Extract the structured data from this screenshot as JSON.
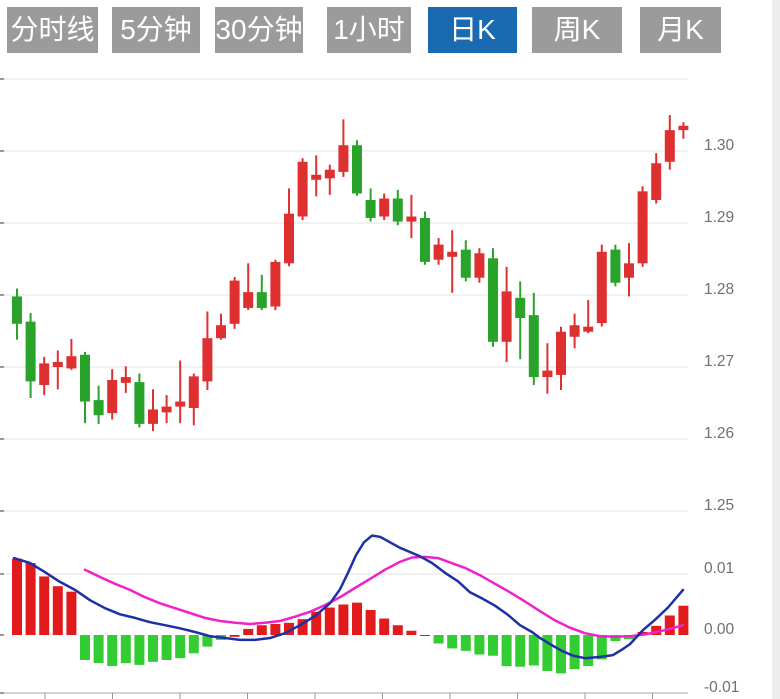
{
  "tabs": {
    "items": [
      {
        "label": "分时线",
        "active": false
      },
      {
        "label": "5分钟",
        "active": false
      },
      {
        "label": "30分钟",
        "active": false
      },
      {
        "label": "1小时",
        "active": false
      },
      {
        "label": "日K",
        "active": true
      },
      {
        "label": "周K",
        "active": false
      },
      {
        "label": "月K",
        "active": false
      }
    ]
  },
  "colors": {
    "tab_gray": "#9b9b9b",
    "tab_active_blue": "#1a6ab1",
    "candle_up_red": "#df3031",
    "candle_down_green": "#2aa32a",
    "hist_up_red": "#e11b1b",
    "hist_down_green": "#33cc33",
    "dif_line_blue": "#1e2fa8",
    "dea_line_magenta": "#ee22cc",
    "gridline": "#e3e3e3",
    "axis_line": "#aaaaaa",
    "axis_text": "#707070"
  },
  "chart_data": {
    "type": "candlestick+macd",
    "title": "",
    "price_panel": {
      "type": "candlestick",
      "y_tick_labels": [
        "1.30",
        "1.29",
        "1.28",
        "1.27",
        "1.26",
        "1.25"
      ],
      "y_tick_values": [
        1.3,
        1.29,
        1.28,
        1.27,
        1.26,
        1.25
      ],
      "grid_values": [
        1.31,
        1.3,
        1.29,
        1.28,
        1.27,
        1.26,
        1.25
      ],
      "ylim": [
        1.245,
        1.311
      ],
      "up_means": "red (close >= open)",
      "candles_ohlc": [
        [
          1.2798,
          1.2809,
          1.2738,
          1.276
        ],
        [
          1.2763,
          1.2775,
          1.2657,
          1.268
        ],
        [
          1.2675,
          1.2714,
          1.2661,
          1.2705
        ],
        [
          1.27,
          1.2723,
          1.2669,
          1.2707
        ],
        [
          1.2698,
          1.2739,
          1.2696,
          1.2715
        ],
        [
          1.2717,
          1.2721,
          1.2622,
          1.2652
        ],
        [
          1.2654,
          1.2674,
          1.2621,
          1.2633
        ],
        [
          1.2636,
          1.2697,
          1.2627,
          1.2682
        ],
        [
          1.2678,
          1.2701,
          1.2664,
          1.2686
        ],
        [
          1.2679,
          1.2691,
          1.2616,
          1.2621
        ],
        [
          1.2621,
          1.2669,
          1.2611,
          1.2641
        ],
        [
          1.2637,
          1.2661,
          1.2622,
          1.2645
        ],
        [
          1.2645,
          1.2709,
          1.2622,
          1.2652
        ],
        [
          1.2643,
          1.2691,
          1.2619,
          1.2687
        ],
        [
          1.268,
          1.2777,
          1.2668,
          1.274
        ],
        [
          1.274,
          1.2774,
          1.2738,
          1.2758
        ],
        [
          1.276,
          1.2825,
          1.2753,
          1.282
        ],
        [
          1.2782,
          1.2844,
          1.2779,
          1.2804
        ],
        [
          1.2804,
          1.2828,
          1.2779,
          1.2782
        ],
        [
          1.2784,
          1.2849,
          1.2779,
          1.2846
        ],
        [
          1.2844,
          1.2948,
          1.284,
          1.2913
        ],
        [
          1.2909,
          1.299,
          1.2904,
          1.2985
        ],
        [
          1.296,
          1.2994,
          1.2937,
          1.2967
        ],
        [
          1.2962,
          1.2981,
          1.2939,
          1.2974
        ],
        [
          1.2971,
          1.3044,
          1.2964,
          1.3008
        ],
        [
          1.3008,
          1.3015,
          1.2938,
          1.2941
        ],
        [
          1.2932,
          1.2948,
          1.2902,
          1.2907
        ],
        [
          1.2909,
          1.2941,
          1.2904,
          1.2934
        ],
        [
          1.2934,
          1.2946,
          1.2897,
          1.2902
        ],
        [
          1.2902,
          1.2939,
          1.2879,
          1.2909
        ],
        [
          1.2907,
          1.2916,
          1.2842,
          1.2846
        ],
        [
          1.2849,
          1.2879,
          1.2842,
          1.287
        ],
        [
          1.2853,
          1.289,
          1.2803,
          1.286
        ],
        [
          1.2863,
          1.2876,
          1.2819,
          1.2824
        ],
        [
          1.2824,
          1.2865,
          1.2817,
          1.2858
        ],
        [
          1.2851,
          1.2865,
          1.2728,
          1.2735
        ],
        [
          1.2735,
          1.2839,
          1.2707,
          1.2805
        ],
        [
          1.2796,
          1.2819,
          1.2711,
          1.2768
        ],
        [
          1.2772,
          1.2803,
          1.2675,
          1.2686
        ],
        [
          1.2686,
          1.2733,
          1.2663,
          1.2695
        ],
        [
          1.2689,
          1.2756,
          1.2668,
          1.2749
        ],
        [
          1.2742,
          1.2774,
          1.2726,
          1.2758
        ],
        [
          1.2749,
          1.2793,
          1.2747,
          1.2756
        ],
        [
          1.2761,
          1.287,
          1.2756,
          1.286
        ],
        [
          1.2863,
          1.287,
          1.2812,
          1.2817
        ],
        [
          1.2824,
          1.2872,
          1.2798,
          1.2844
        ],
        [
          1.2844,
          1.2951,
          1.2839,
          1.2944
        ],
        [
          1.2932,
          1.2997,
          1.2927,
          1.2983
        ],
        [
          1.2985,
          1.305,
          1.2974,
          1.3029
        ],
        [
          1.3029,
          1.304,
          1.3017,
          1.3035
        ]
      ]
    },
    "macd_panel": {
      "type": "macd",
      "y_tick_labels": [
        "0.01",
        "0.00",
        "-0.01"
      ],
      "y_tick_values": [
        0.01,
        0.0,
        -0.01
      ],
      "ylim": [
        -0.0095,
        0.017
      ],
      "histogram": [
        0.0125,
        0.0118,
        0.0096,
        0.008,
        0.0071,
        -0.0041,
        -0.0046,
        -0.0051,
        -0.0046,
        -0.0049,
        -0.0044,
        -0.0041,
        -0.0038,
        -0.003,
        -0.0019,
        -0.0008,
        -0.0003,
        0.001,
        0.0016,
        0.0018,
        0.002,
        0.0026,
        0.0038,
        0.0045,
        0.005,
        0.0053,
        0.0041,
        0.0027,
        0.0016,
        0.0007,
        0.0,
        -0.0014,
        -0.0022,
        -0.0026,
        -0.0032,
        -0.0034,
        -0.0051,
        -0.0052,
        -0.005,
        -0.0059,
        -0.0063,
        -0.0056,
        -0.0051,
        -0.004,
        -0.001,
        -0.0007,
        0.0005,
        0.0015,
        0.0032,
        0.0048
      ],
      "histogram_colors": [
        "R",
        "R",
        "R",
        "R",
        "R",
        "G",
        "G",
        "G",
        "G",
        "G",
        "G",
        "G",
        "G",
        "G",
        "G",
        "G",
        "R",
        "R",
        "R",
        "R",
        "R",
        "R",
        "R",
        "R",
        "R",
        "R",
        "R",
        "R",
        "R",
        "R",
        "R",
        "G",
        "G",
        "G",
        "G",
        "G",
        "G",
        "G",
        "G",
        "G",
        "G",
        "G",
        "G",
        "G",
        "G",
        "G",
        "R",
        "R",
        "R",
        "R"
      ],
      "dif_line": [
        [
          14,
          0.0126
        ],
        [
          30,
          0.0118
        ],
        [
          45,
          0.0103
        ],
        [
          60,
          0.0087
        ],
        [
          75,
          0.0074
        ],
        [
          90,
          0.0057
        ],
        [
          105,
          0.0044
        ],
        [
          120,
          0.0034
        ],
        [
          135,
          0.0028
        ],
        [
          150,
          0.0021
        ],
        [
          165,
          0.0016
        ],
        [
          180,
          0.0011
        ],
        [
          195,
          0.0005
        ],
        [
          210,
          -0.0002
        ],
        [
          225,
          -0.0005
        ],
        [
          240,
          -0.0008
        ],
        [
          255,
          -0.0008
        ],
        [
          270,
          -0.0005
        ],
        [
          285,
          0.0003
        ],
        [
          300,
          0.0016
        ],
        [
          315,
          0.0031
        ],
        [
          330,
          0.0052
        ],
        [
          340,
          0.0075
        ],
        [
          348,
          0.0102
        ],
        [
          356,
          0.0131
        ],
        [
          364,
          0.0152
        ],
        [
          372,
          0.0163
        ],
        [
          380,
          0.0161
        ],
        [
          390,
          0.0152
        ],
        [
          400,
          0.0143
        ],
        [
          410,
          0.0136
        ],
        [
          420,
          0.0129
        ],
        [
          432,
          0.0118
        ],
        [
          445,
          0.0102
        ],
        [
          458,
          0.0088
        ],
        [
          470,
          0.007
        ],
        [
          482,
          0.006
        ],
        [
          495,
          0.0048
        ],
        [
          508,
          0.0033
        ],
        [
          520,
          0.0016
        ],
        [
          532,
          0.0005
        ],
        [
          540,
          -0.0005
        ],
        [
          550,
          -0.0015
        ],
        [
          562,
          -0.0026
        ],
        [
          573,
          -0.0034
        ],
        [
          585,
          -0.0038
        ],
        [
          599,
          -0.0036
        ],
        [
          613,
          -0.0033
        ],
        [
          622,
          -0.0024
        ],
        [
          630,
          -0.0015
        ],
        [
          643,
          0.0008
        ],
        [
          655,
          0.0025
        ],
        [
          668,
          0.0045
        ],
        [
          683,
          0.0074
        ]
      ],
      "dea_line": [
        [
          85,
          0.0107
        ],
        [
          100,
          0.0095
        ],
        [
          115,
          0.0084
        ],
        [
          130,
          0.0074
        ],
        [
          145,
          0.0062
        ],
        [
          160,
          0.0052
        ],
        [
          175,
          0.0044
        ],
        [
          190,
          0.0036
        ],
        [
          205,
          0.0028
        ],
        [
          220,
          0.0023
        ],
        [
          235,
          0.002
        ],
        [
          250,
          0.0018
        ],
        [
          265,
          0.002
        ],
        [
          280,
          0.0023
        ],
        [
          295,
          0.003
        ],
        [
          310,
          0.0038
        ],
        [
          325,
          0.0049
        ],
        [
          340,
          0.0062
        ],
        [
          355,
          0.0077
        ],
        [
          370,
          0.0092
        ],
        [
          385,
          0.0107
        ],
        [
          400,
          0.012
        ],
        [
          412,
          0.0127
        ],
        [
          425,
          0.0128
        ],
        [
          438,
          0.0126
        ],
        [
          450,
          0.0119
        ],
        [
          465,
          0.011
        ],
        [
          480,
          0.0098
        ],
        [
          495,
          0.0084
        ],
        [
          510,
          0.007
        ],
        [
          525,
          0.0055
        ],
        [
          540,
          0.0039
        ],
        [
          555,
          0.0024
        ],
        [
          570,
          0.0012
        ],
        [
          585,
          0.0003
        ],
        [
          600,
          -0.0002
        ],
        [
          615,
          -0.0003
        ],
        [
          630,
          -0.0002
        ],
        [
          645,
          0.0001
        ],
        [
          660,
          0.0006
        ],
        [
          672,
          0.0011
        ],
        [
          683,
          0.0016
        ]
      ],
      "x_axis_tick_count": 10
    }
  }
}
